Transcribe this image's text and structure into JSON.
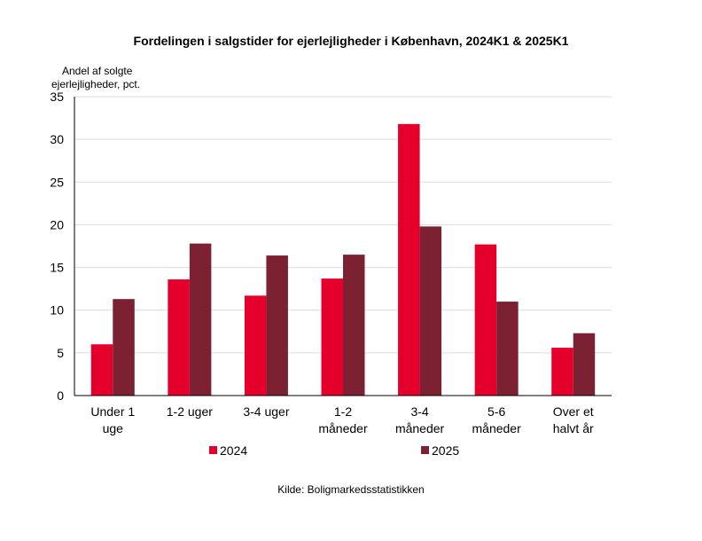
{
  "chart_data": {
    "type": "bar",
    "title": "Fordelingen i salgstider for ejerlejligheder i København, 2024K1 & 2025K1",
    "ylabel_lines": [
      "Andel af solgte",
      "ejerlejligheder, pct."
    ],
    "xlabel": "",
    "categories": [
      [
        "Under 1",
        "uge"
      ],
      [
        "1-2 uger"
      ],
      [
        "3-4 uger"
      ],
      [
        "1-2",
        "måneder"
      ],
      [
        "3-4",
        "måneder"
      ],
      [
        "5-6",
        "måneder"
      ],
      [
        "Over et",
        "halvt år"
      ]
    ],
    "series": [
      {
        "name": "2024",
        "color": "#e4002b",
        "values": [
          6.0,
          13.6,
          11.7,
          13.7,
          31.8,
          17.7,
          5.6
        ]
      },
      {
        "name": "2025",
        "color": "#7b2131",
        "values": [
          11.3,
          17.8,
          16.4,
          16.5,
          19.8,
          11.0,
          7.3
        ]
      }
    ],
    "ylim": [
      0,
      35
    ],
    "yticks": [
      0,
      5,
      10,
      15,
      20,
      25,
      30,
      35
    ],
    "grid": true,
    "legend_position": "bottom"
  },
  "source": "Kilde: Boligmarkedsstatistikken"
}
